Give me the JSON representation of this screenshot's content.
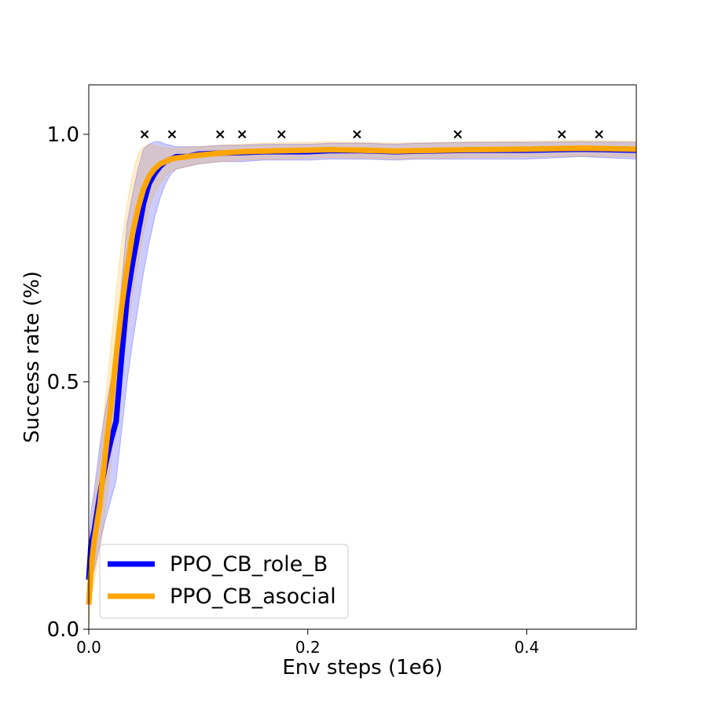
{
  "chart_data": {
    "type": "line",
    "title": "",
    "xlabel": "Env steps (1e6)",
    "ylabel": "Success rate (%)",
    "xlim": [
      0.0,
      0.5
    ],
    "ylim": [
      0.0,
      1.1
    ],
    "x_ticks": [
      {
        "value": 0.0,
        "label": "0.0"
      },
      {
        "value": 0.2,
        "label": "0.2"
      },
      {
        "value": 0.4,
        "label": "0.4"
      }
    ],
    "y_ticks": [
      {
        "value": 0.0,
        "label": "0.0"
      },
      {
        "value": 0.5,
        "label": "0.5"
      },
      {
        "value": 1.0,
        "label": "1.0"
      }
    ],
    "grid": false,
    "legend_position": "lower-left",
    "markers": {
      "symbol": "x",
      "y": 1.0,
      "x": [
        0.051,
        0.076,
        0.12,
        0.14,
        0.176,
        0.245,
        0.337,
        0.432,
        0.466
      ]
    },
    "series": [
      {
        "name": "PPO_CB_role_B",
        "color": "#0000ff",
        "band_color": "#0000ff",
        "x": [
          0.0,
          0.002,
          0.005,
          0.01,
          0.015,
          0.02,
          0.025,
          0.03,
          0.035,
          0.04,
          0.045,
          0.05,
          0.055,
          0.06,
          0.065,
          0.07,
          0.075,
          0.08,
          0.09,
          0.1,
          0.12,
          0.14,
          0.16,
          0.18,
          0.2,
          0.22,
          0.25,
          0.28,
          0.3,
          0.35,
          0.4,
          0.45,
          0.5
        ],
        "values": [
          0.1,
          0.17,
          0.2,
          0.27,
          0.33,
          0.38,
          0.42,
          0.55,
          0.67,
          0.74,
          0.8,
          0.86,
          0.9,
          0.92,
          0.935,
          0.945,
          0.95,
          0.955,
          0.955,
          0.96,
          0.962,
          0.963,
          0.965,
          0.965,
          0.965,
          0.967,
          0.967,
          0.965,
          0.966,
          0.968,
          0.968,
          0.97,
          0.968
        ],
        "lower": [
          0.05,
          0.1,
          0.12,
          0.17,
          0.22,
          0.26,
          0.3,
          0.4,
          0.5,
          0.58,
          0.65,
          0.72,
          0.78,
          0.83,
          0.87,
          0.9,
          0.92,
          0.93,
          0.935,
          0.94,
          0.945,
          0.945,
          0.948,
          0.948,
          0.948,
          0.95,
          0.95,
          0.948,
          0.95,
          0.95,
          0.95,
          0.955,
          0.95
        ],
        "upper": [
          0.15,
          0.24,
          0.28,
          0.37,
          0.44,
          0.5,
          0.55,
          0.7,
          0.82,
          0.88,
          0.93,
          0.97,
          0.98,
          0.985,
          0.985,
          0.98,
          0.978,
          0.975,
          0.975,
          0.975,
          0.978,
          0.978,
          0.98,
          0.98,
          0.98,
          0.982,
          0.982,
          0.98,
          0.982,
          0.984,
          0.984,
          0.985,
          0.984
        ]
      },
      {
        "name": "PPO_CB_asocial",
        "color": "#ffa500",
        "band_color": "#ffa500",
        "x": [
          0.0,
          0.002,
          0.005,
          0.01,
          0.015,
          0.02,
          0.025,
          0.03,
          0.035,
          0.04,
          0.045,
          0.05,
          0.055,
          0.06,
          0.065,
          0.07,
          0.075,
          0.08,
          0.09,
          0.1,
          0.12,
          0.14,
          0.16,
          0.18,
          0.2,
          0.22,
          0.25,
          0.28,
          0.3,
          0.35,
          0.4,
          0.45,
          0.5
        ],
        "values": [
          0.05,
          0.12,
          0.18,
          0.25,
          0.35,
          0.45,
          0.55,
          0.65,
          0.73,
          0.8,
          0.85,
          0.89,
          0.915,
          0.93,
          0.94,
          0.945,
          0.95,
          0.952,
          0.955,
          0.958,
          0.962,
          0.965,
          0.966,
          0.967,
          0.968,
          0.969,
          0.968,
          0.966,
          0.967,
          0.969,
          0.97,
          0.972,
          0.97
        ],
        "lower": [
          0.0,
          0.06,
          0.1,
          0.16,
          0.24,
          0.33,
          0.42,
          0.52,
          0.6,
          0.68,
          0.74,
          0.8,
          0.85,
          0.88,
          0.9,
          0.915,
          0.925,
          0.93,
          0.935,
          0.94,
          0.945,
          0.948,
          0.95,
          0.95,
          0.952,
          0.953,
          0.952,
          0.95,
          0.951,
          0.953,
          0.954,
          0.956,
          0.955
        ],
        "upper": [
          0.1,
          0.18,
          0.26,
          0.34,
          0.46,
          0.57,
          0.68,
          0.78,
          0.86,
          0.92,
          0.96,
          0.975,
          0.98,
          0.978,
          0.975,
          0.972,
          0.972,
          0.972,
          0.974,
          0.975,
          0.978,
          0.98,
          0.982,
          0.983,
          0.984,
          0.985,
          0.984,
          0.982,
          0.983,
          0.985,
          0.986,
          0.988,
          0.986
        ]
      }
    ]
  }
}
